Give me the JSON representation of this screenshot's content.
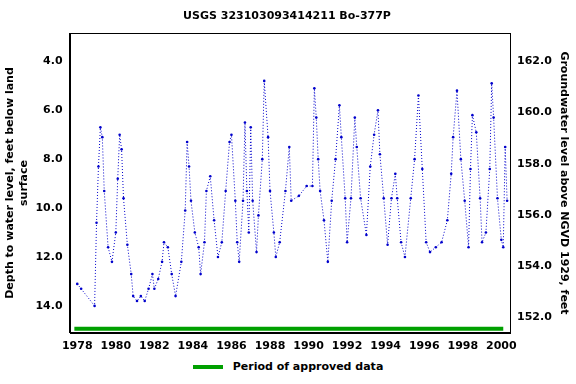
{
  "chart_data": {
    "type": "line",
    "title": "USGS 323103093414211 Bo-377P",
    "y_label": [
      "Depth to water level, feet below land",
      "surface"
    ],
    "y2_label": "Groundwater level above NGVD 1929, feet",
    "x": [
      1978.0,
      1978.2,
      1978.9,
      1979.0,
      1979.1,
      1979.2,
      1979.3,
      1979.4,
      1979.6,
      1979.8,
      1980.0,
      1980.1,
      1980.2,
      1980.3,
      1980.4,
      1980.6,
      1980.8,
      1980.9,
      1981.1,
      1981.3,
      1981.5,
      1981.7,
      1981.9,
      1982.0,
      1982.2,
      1982.4,
      1982.5,
      1982.7,
      1982.9,
      1983.1,
      1983.4,
      1983.6,
      1983.7,
      1983.8,
      1983.9,
      1984.1,
      1984.3,
      1984.4,
      1984.6,
      1984.7,
      1984.9,
      1985.1,
      1985.3,
      1985.5,
      1985.7,
      1985.9,
      1986.0,
      1986.2,
      1986.3,
      1986.4,
      1986.6,
      1986.7,
      1986.8,
      1986.9,
      1987.0,
      1987.1,
      1987.3,
      1987.4,
      1987.6,
      1987.7,
      1987.9,
      1988.0,
      1988.2,
      1988.3,
      1988.5,
      1988.8,
      1989.0,
      1989.1,
      1989.5,
      1989.9,
      1990.2,
      1990.3,
      1990.4,
      1990.5,
      1990.6,
      1990.8,
      1991.0,
      1991.2,
      1991.4,
      1991.6,
      1991.7,
      1991.9,
      1992.0,
      1992.2,
      1992.4,
      1992.5,
      1992.7,
      1993.0,
      1993.2,
      1993.4,
      1993.6,
      1993.7,
      1993.9,
      1994.1,
      1994.3,
      1994.5,
      1994.6,
      1994.8,
      1995.0,
      1995.3,
      1995.5,
      1995.7,
      1995.9,
      1996.1,
      1996.3,
      1996.6,
      1996.9,
      1997.2,
      1997.4,
      1997.5,
      1997.7,
      1997.9,
      1998.1,
      1998.3,
      1998.4,
      1998.5,
      1998.7,
      1998.9,
      1999.0,
      1999.2,
      1999.4,
      1999.5,
      1999.6,
      1999.8,
      2000.0,
      2000.1,
      2000.2,
      2000.3
    ],
    "series": [
      {
        "color": "#0000cc",
        "marker": "circle",
        "line_style": "dotted",
        "values": [
          13.1,
          13.3,
          14.0,
          10.6,
          8.3,
          6.7,
          7.1,
          9.3,
          11.6,
          12.2,
          11.0,
          8.8,
          7.0,
          7.6,
          9.6,
          11.5,
          12.7,
          13.6,
          13.8,
          13.6,
          13.8,
          13.3,
          12.7,
          13.3,
          12.9,
          12.2,
          11.4,
          11.6,
          12.7,
          13.6,
          12.2,
          10.1,
          7.3,
          8.3,
          9.7,
          11.0,
          11.6,
          12.7,
          11.4,
          9.3,
          8.7,
          10.5,
          12.0,
          11.4,
          9.3,
          7.3,
          7.0,
          9.7,
          11.4,
          12.2,
          9.7,
          6.5,
          9.3,
          11.0,
          6.7,
          9.7,
          11.8,
          10.3,
          8.0,
          4.8,
          7.1,
          9.3,
          11.0,
          12.0,
          11.4,
          9.3,
          7.5,
          9.7,
          9.5,
          9.1,
          9.1,
          5.1,
          6.3,
          8.0,
          9.3,
          10.5,
          12.2,
          9.7,
          8.0,
          5.8,
          7.1,
          9.6,
          11.4,
          9.6,
          6.3,
          7.5,
          9.6,
          11.1,
          8.3,
          7.0,
          6.0,
          7.8,
          9.6,
          11.5,
          9.6,
          8.6,
          9.6,
          11.4,
          12.0,
          9.6,
          8.0,
          5.4,
          8.4,
          11.4,
          11.8,
          11.6,
          11.4,
          10.5,
          8.6,
          7.1,
          5.2,
          8.0,
          9.7,
          11.6,
          8.4,
          6.2,
          6.9,
          9.6,
          11.4,
          11.0,
          8.4,
          4.9,
          6.3,
          9.6,
          11.3,
          11.6,
          7.5,
          9.7
        ]
      }
    ],
    "xlim": [
      1977.6,
      2000.45
    ],
    "xticks": [
      1978,
      1980,
      1982,
      1984,
      1986,
      1988,
      1990,
      1992,
      1994,
      1996,
      1998,
      2000
    ],
    "ylim": [
      2.85,
      15.1
    ],
    "yticks": [
      {
        "value": 4,
        "label": "4.0"
      },
      {
        "value": 6,
        "label": "6.0"
      },
      {
        "value": 8,
        "label": "8.0"
      },
      {
        "value": 10,
        "label": "10.0"
      },
      {
        "value": 12,
        "label": "12.0"
      },
      {
        "value": 14,
        "label": "14.0"
      }
    ],
    "y2lim": [
      151.4,
      163.1
    ],
    "y2ticks": [
      {
        "value": 152,
        "label": "152.0"
      },
      {
        "value": 154,
        "label": "154.0"
      },
      {
        "value": 156,
        "label": "156.0"
      },
      {
        "value": 158,
        "label": "158.0"
      },
      {
        "value": 160,
        "label": "160.0"
      },
      {
        "value": 162,
        "label": "162.0"
      }
    ],
    "approved_period": {
      "name": "Period of approved data",
      "color": "#00a000",
      "x": [
        1977.85,
        2000.1
      ]
    },
    "grid": false
  }
}
